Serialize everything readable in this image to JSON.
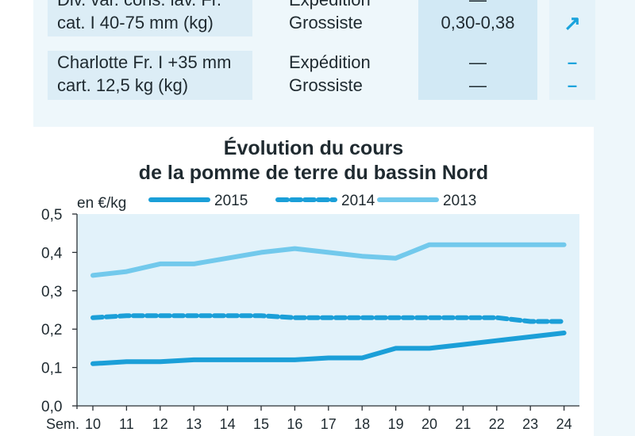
{
  "table": {
    "rows": [
      {
        "product_lines": [
          "Div. var. cons. lav. Fr.",
          "cat. I 40-75 mm (kg)"
        ],
        "types": [
          "Expédition",
          "Grossiste"
        ],
        "prices": [
          "—",
          "0,30-0,38"
        ],
        "trends": [
          "–",
          "↗"
        ]
      },
      {
        "product_lines": [
          "Charlotte Fr. I +35 mm",
          "cart. 12,5 kg (kg)"
        ],
        "types": [
          "Expédition",
          "Grossiste"
        ],
        "prices": [
          "—",
          "—"
        ],
        "trends": [
          "–",
          "–"
        ]
      }
    ]
  },
  "colors": {
    "series_2015": "#1b9fd8",
    "series_2014": "#1b9fd8",
    "series_2013": "#72c9ec",
    "plot_bg": "#e2f2fa",
    "trend": "#1aa3dc"
  },
  "chart_data": {
    "type": "line",
    "title_lines": [
      "Évolution du cours",
      "de la pomme de terre du bassin Nord"
    ],
    "unit_label": "en €/kg",
    "x_prefix": "Sem.",
    "x": [
      "10",
      "11",
      "12",
      "13",
      "14",
      "15",
      "16",
      "17",
      "18",
      "19",
      "20",
      "21",
      "22",
      "23",
      "24"
    ],
    "ylim": [
      0,
      0.5
    ],
    "y_ticks": [
      "0,0",
      "0,1",
      "0,2",
      "0,3",
      "0,4",
      "0,5"
    ],
    "grid": false,
    "legend_position": "top",
    "series": [
      {
        "name": "2015",
        "style": "solid",
        "values": [
          0.11,
          0.115,
          0.115,
          0.12,
          0.12,
          0.12,
          0.12,
          0.125,
          0.125,
          0.15,
          0.15,
          0.16,
          0.17,
          0.18,
          0.19
        ]
      },
      {
        "name": "2014",
        "style": "dashed",
        "values": [
          0.23,
          0.235,
          0.235,
          0.235,
          0.235,
          0.235,
          0.23,
          0.23,
          0.23,
          0.23,
          0.23,
          0.23,
          0.23,
          0.22,
          0.22
        ]
      },
      {
        "name": "2013",
        "style": "solid-light",
        "values": [
          0.34,
          0.35,
          0.37,
          0.37,
          0.385,
          0.4,
          0.41,
          0.4,
          0.39,
          0.385,
          0.42,
          0.42,
          0.42,
          0.42,
          0.42
        ]
      }
    ]
  }
}
